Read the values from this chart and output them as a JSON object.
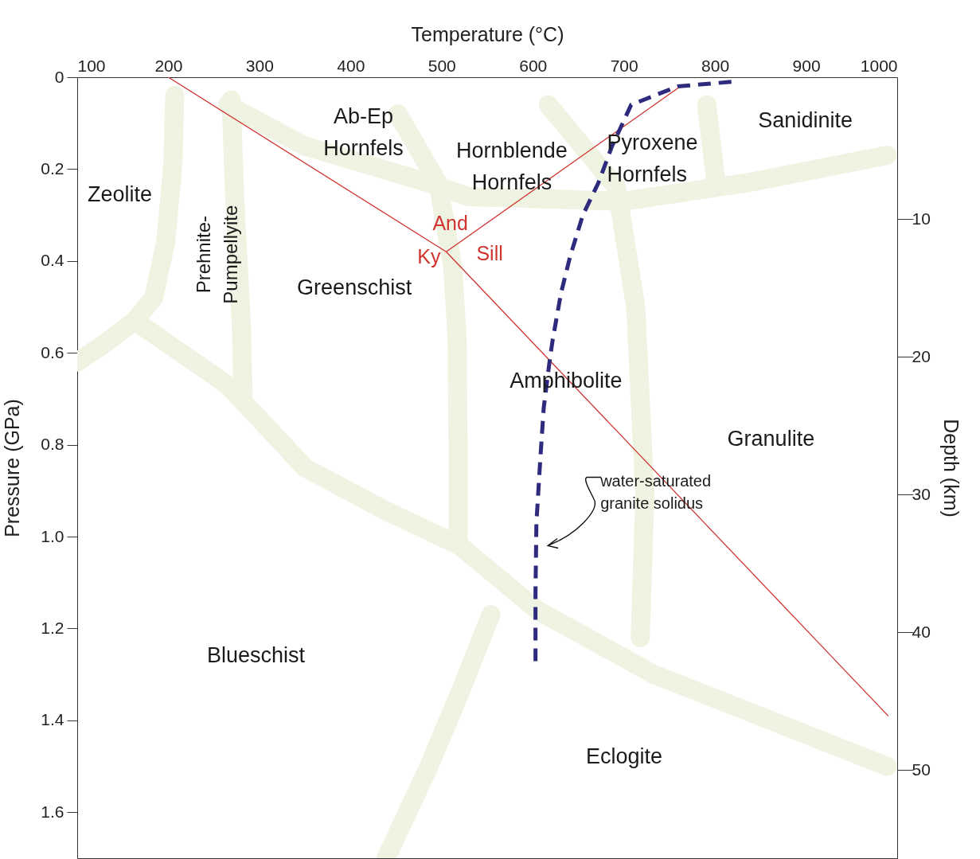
{
  "chart_data": {
    "type": "line",
    "xlabel": "Temperature (°C)",
    "ylabel": "Pressure (GPa)",
    "y2label": "Depth (km)",
    "xlim": [
      100,
      1000
    ],
    "xticks": [
      100,
      200,
      300,
      400,
      500,
      600,
      700,
      800,
      900,
      1000
    ],
    "ylim": [
      1.7,
      0
    ],
    "yticks": [
      0,
      0.2,
      0.4,
      0.6,
      0.8,
      {
        "value": 1,
        "label": "1.0"
      },
      1.2,
      1.4,
      1.6
    ],
    "y2lim": [
      56.4,
      -0.3
    ],
    "y2ticks": [
      10,
      20,
      30,
      40,
      50
    ],
    "grid": false,
    "marker": "none",
    "series": [
      {
        "color": "#eef3e2",
        "x": [
          163,
          265,
          350,
          435,
          520,
          605,
          733,
          861,
          989
        ],
        "values": [
          0.53,
          0.67,
          0.85,
          0.94,
          1.02,
          1.16,
          1.3,
          1.4,
          1.5
        ]
      },
      {
        "color": "#eef3e2",
        "x": [
          207,
          205,
          197,
          184,
          163,
          130,
          100
        ],
        "values": [
          0.04,
          0.19,
          0.36,
          0.48,
          0.53,
          0.58,
          0.62
        ]
      },
      {
        "color": "#eef3e2",
        "x": [
          269,
          273,
          280,
          282
        ],
        "values": [
          0.05,
          0.27,
          0.53,
          0.69
        ]
      },
      {
        "color": "#eef3e2",
        "x": [
          265,
          350,
          486,
          529,
          699,
          835,
          989
        ],
        "values": [
          0.06,
          0.15,
          0.23,
          0.26,
          0.27,
          0.23,
          0.17
        ]
      },
      {
        "color": "#eef3e2",
        "x": [
          452,
          496,
          512,
          517,
          518,
          518
        ],
        "values": [
          0.08,
          0.23,
          0.41,
          0.57,
          0.81,
          1.01
        ]
      },
      {
        "color": "#eef3e2",
        "x": [
          617,
          692,
          713,
          723,
          718
        ],
        "values": [
          0.06,
          0.24,
          0.5,
          0.91,
          1.22
        ]
      },
      {
        "color": "#eef3e2",
        "x": [
          791,
          801
        ],
        "values": [
          0.06,
          0.23
        ]
      },
      {
        "color": "#eef3e2",
        "x": [
          554,
          520,
          486,
          439
        ],
        "values": [
          1.17,
          1.34,
          1.5,
          1.7
        ]
      },
      {
        "color": "#d0332e",
        "x": [
          200,
          505,
          990,
          null,
          505,
          762
        ],
        "values": [
          0,
          0.38,
          1.39,
          null,
          0.38,
          0.02
        ]
      },
      {
        "color": "#2e2a7e",
        "line_style": "dashed",
        "x": [
          818,
          759,
          708,
          687,
          672,
          655,
          641,
          631,
          622,
          619,
          612,
          608,
          604,
          603,
          603
        ],
        "values": [
          0.01,
          0.02,
          0.06,
          0.15,
          0.23,
          0.3,
          0.39,
          0.47,
          0.57,
          0.61,
          0.72,
          0.84,
          0.97,
          1.12,
          1.28
        ]
      }
    ],
    "annotations": [
      "Ab-Ep\nHornfels",
      "Hornblende\nHornfels",
      "Pyroxene\nHornfels",
      "Sanidinite",
      "Zeolite",
      "Prehnite-\nPumpellyite",
      "And",
      "Ky",
      "Sill",
      "Greenschist",
      "Amphibolite",
      "Granulite",
      "water-saturated\ngranite solidus",
      "Blueschist",
      "Eclogite"
    ]
  }
}
